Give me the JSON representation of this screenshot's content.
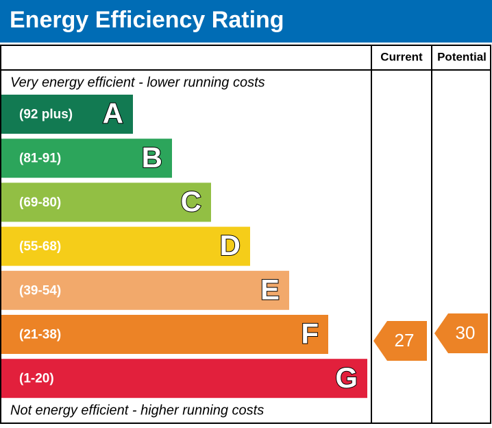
{
  "header": {
    "title": "Energy Efficiency Rating"
  },
  "table": {
    "columns": [
      "Current",
      "Potential"
    ],
    "top_note": "Very energy efficient - lower running costs",
    "bottom_note": "Not energy efficient - higher running costs",
    "bands": [
      {
        "range": "(92 plus)",
        "letter": "A",
        "color": "#127a52"
      },
      {
        "range": "(81-91)",
        "letter": "B",
        "color": "#2ca55b"
      },
      {
        "range": "(69-80)",
        "letter": "C",
        "color": "#92bf44"
      },
      {
        "range": "(55-68)",
        "letter": "D",
        "color": "#f5cd19"
      },
      {
        "range": "(39-54)",
        "letter": "E",
        "color": "#f2a96b"
      },
      {
        "range": "(21-38)",
        "letter": "F",
        "color": "#ec8326"
      },
      {
        "range": "(1-20)",
        "letter": "G",
        "color": "#e2203c"
      }
    ],
    "current": {
      "value": 27,
      "color": "#ec8326"
    },
    "potential": {
      "value": 30,
      "color": "#ec8326"
    }
  }
}
